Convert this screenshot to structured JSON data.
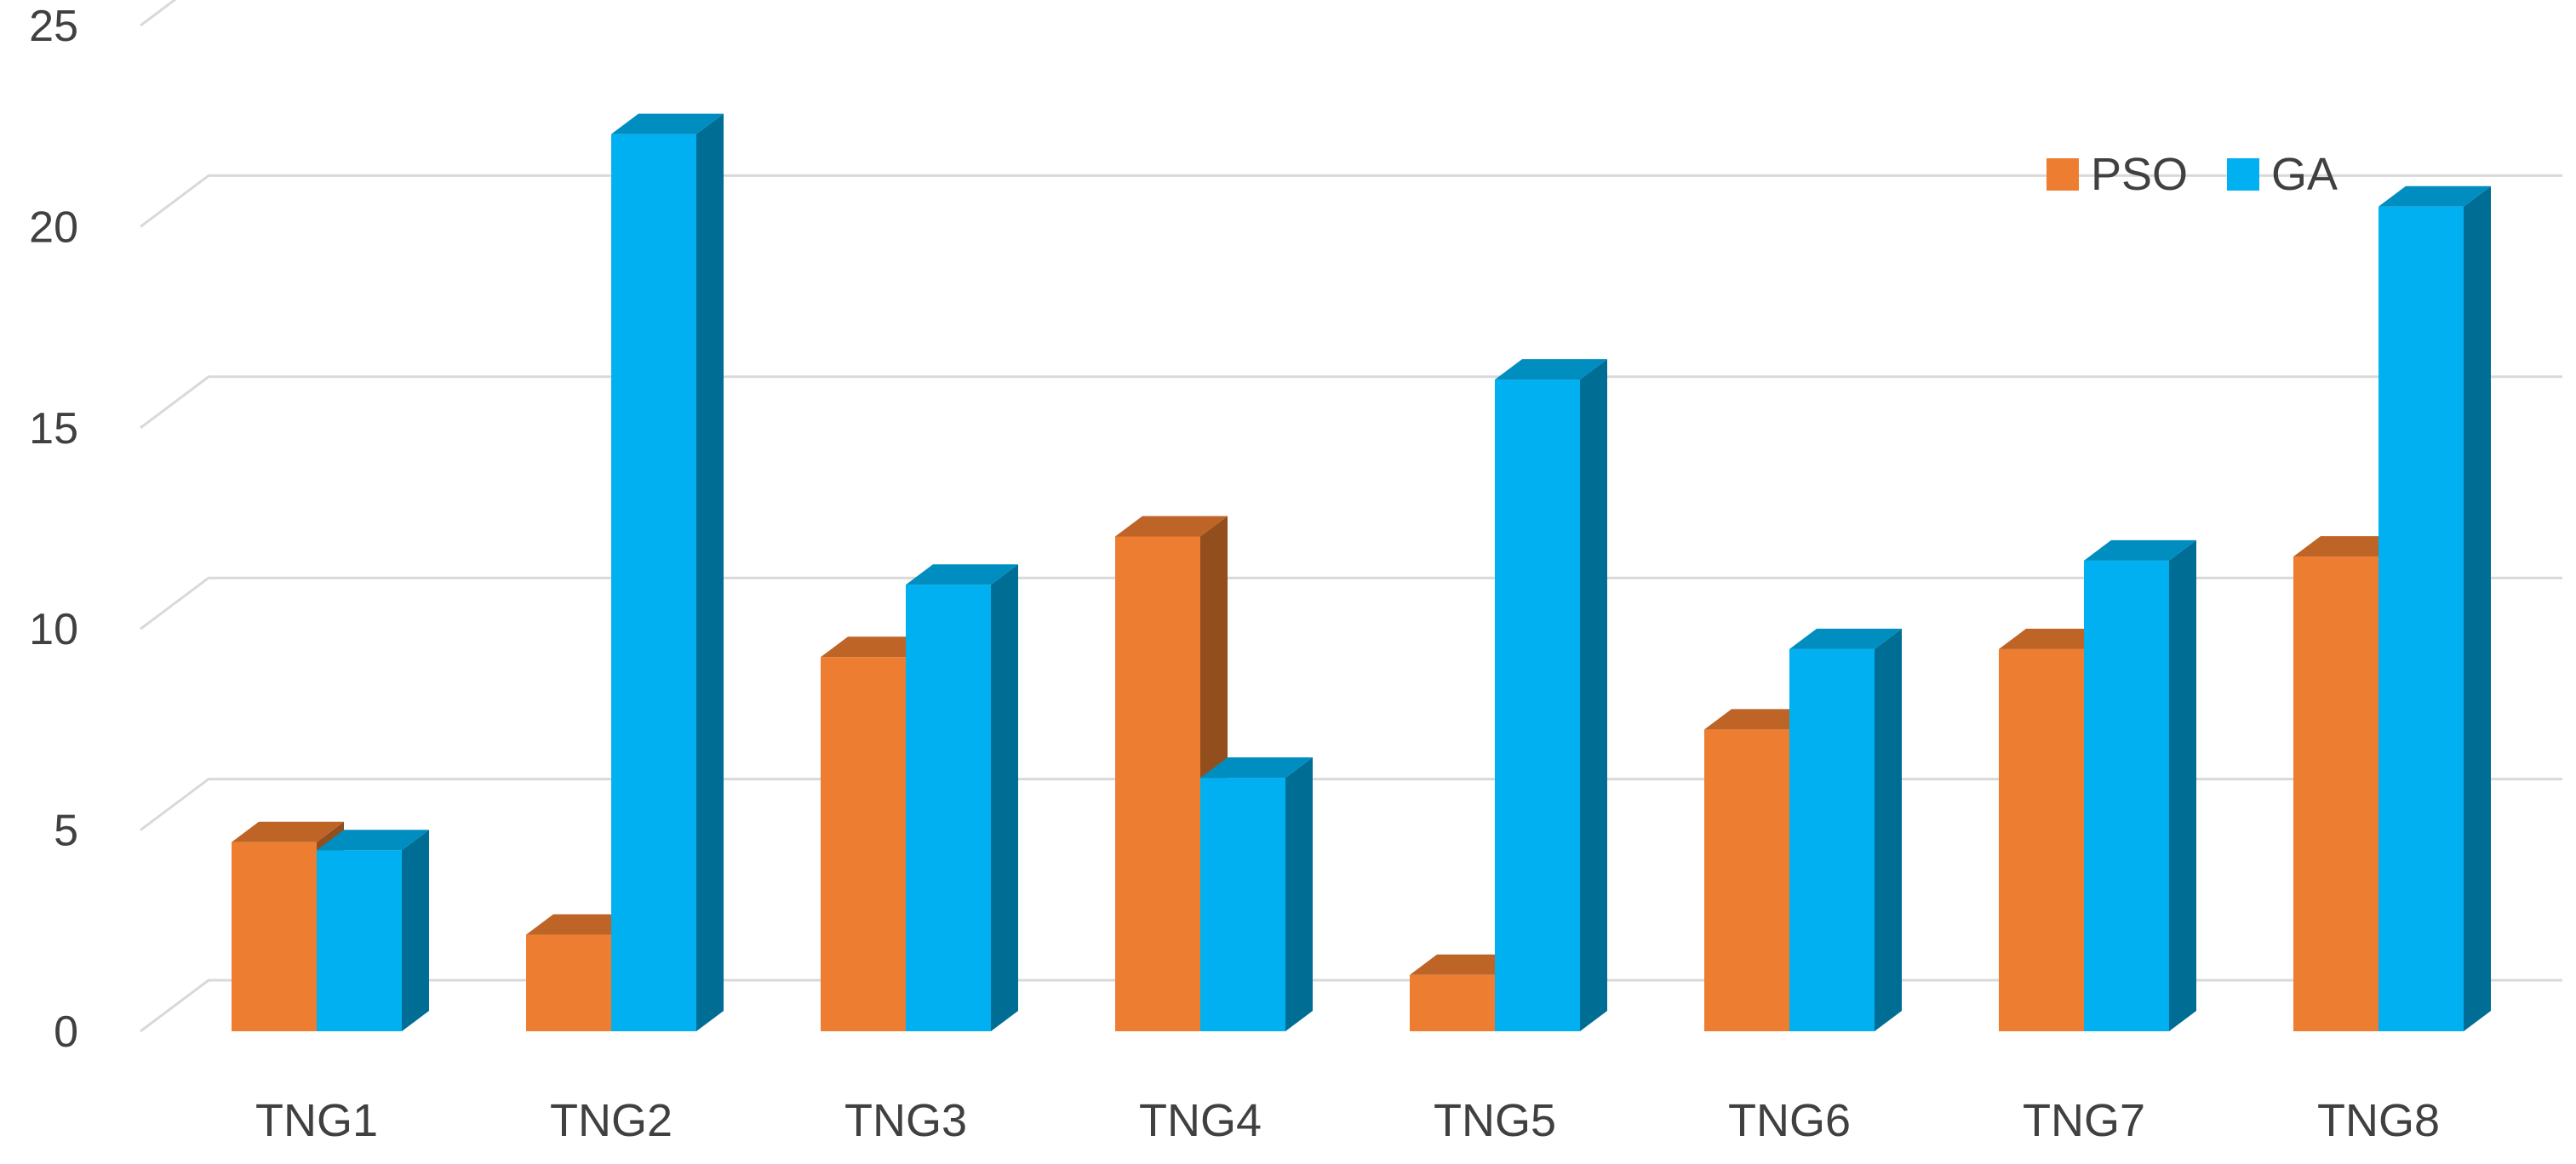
{
  "chart_data": {
    "type": "bar",
    "title": "",
    "xlabel": "",
    "ylabel": "",
    "categories": [
      "TNG1",
      "TNG2",
      "TNG3",
      "TNG4",
      "TNG5",
      "TNG6",
      "TNG7",
      "TNG8"
    ],
    "series": [
      {
        "name": "PSO",
        "values": [
          4.7,
          2.4,
          9.3,
          12.3,
          1.4,
          7.5,
          9.5,
          11.8
        ],
        "color": "#ED7D31"
      },
      {
        "name": "GA",
        "values": [
          4.5,
          22.3,
          11.1,
          6.3,
          16.2,
          9.5,
          11.7,
          20.5
        ],
        "color": "#00B0F0"
      }
    ],
    "ylim": [
      0,
      25
    ],
    "yticks": [
      0,
      5,
      10,
      15,
      20,
      25
    ],
    "grid": true,
    "legend_position": "top-right",
    "style": "3d-column"
  }
}
